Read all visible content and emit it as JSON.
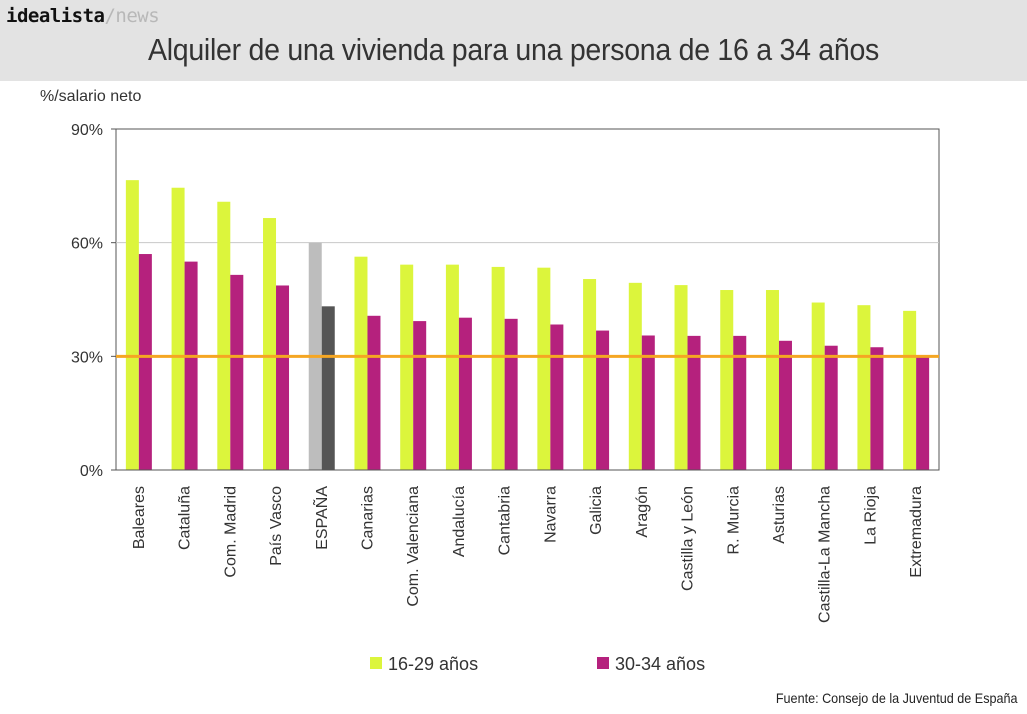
{
  "brand": {
    "name": "idealista",
    "suffix": "/news"
  },
  "title": "Alquiler de una vivienda para una persona de 16 a 34 años",
  "source": "Fuente: Consejo de la Juventud de España",
  "colors": {
    "series1": "#dcf53c",
    "series2": "#b5217d",
    "espana1": "#bdbdbd",
    "espana2": "#555555",
    "reference": "#f5a623"
  },
  "chart_data": {
    "type": "bar",
    "ylabel": "%/salario neto",
    "ylim": [
      0,
      90
    ],
    "yticks": [
      0,
      30,
      60,
      90
    ],
    "ytick_labels": [
      "0%",
      "30%",
      "60%",
      "90%"
    ],
    "grid": "horizontal at 60%",
    "reference_line": 30,
    "legend_position": "bottom",
    "highlighted_category": "ESPAÑA",
    "categories": [
      "Baleares",
      "Cataluña",
      "Com. Madrid",
      "País Vasco",
      "ESPAÑA",
      "Canarias",
      "Com. Valenciana",
      "Andalucía",
      "Cantabria",
      "Navarra",
      "Galicia",
      "Aragón",
      "Castilla y León",
      "R. Murcia",
      "Asturias",
      "Castilla-La Mancha",
      "La Rioja",
      "Extremadura"
    ],
    "series": [
      {
        "name": "16-29 años",
        "values": [
          76.5,
          74.5,
          70.8,
          66.5,
          60.0,
          56.3,
          54.2,
          54.2,
          53.6,
          53.4,
          50.4,
          49.4,
          48.8,
          47.5,
          47.5,
          44.2,
          43.5,
          42.0
        ]
      },
      {
        "name": "30-34 años",
        "values": [
          57.0,
          55.0,
          51.5,
          48.7,
          43.2,
          40.7,
          39.3,
          40.2,
          39.9,
          38.4,
          36.8,
          35.5,
          35.4,
          35.4,
          34.1,
          32.8,
          32.4,
          30.0
        ]
      }
    ]
  }
}
